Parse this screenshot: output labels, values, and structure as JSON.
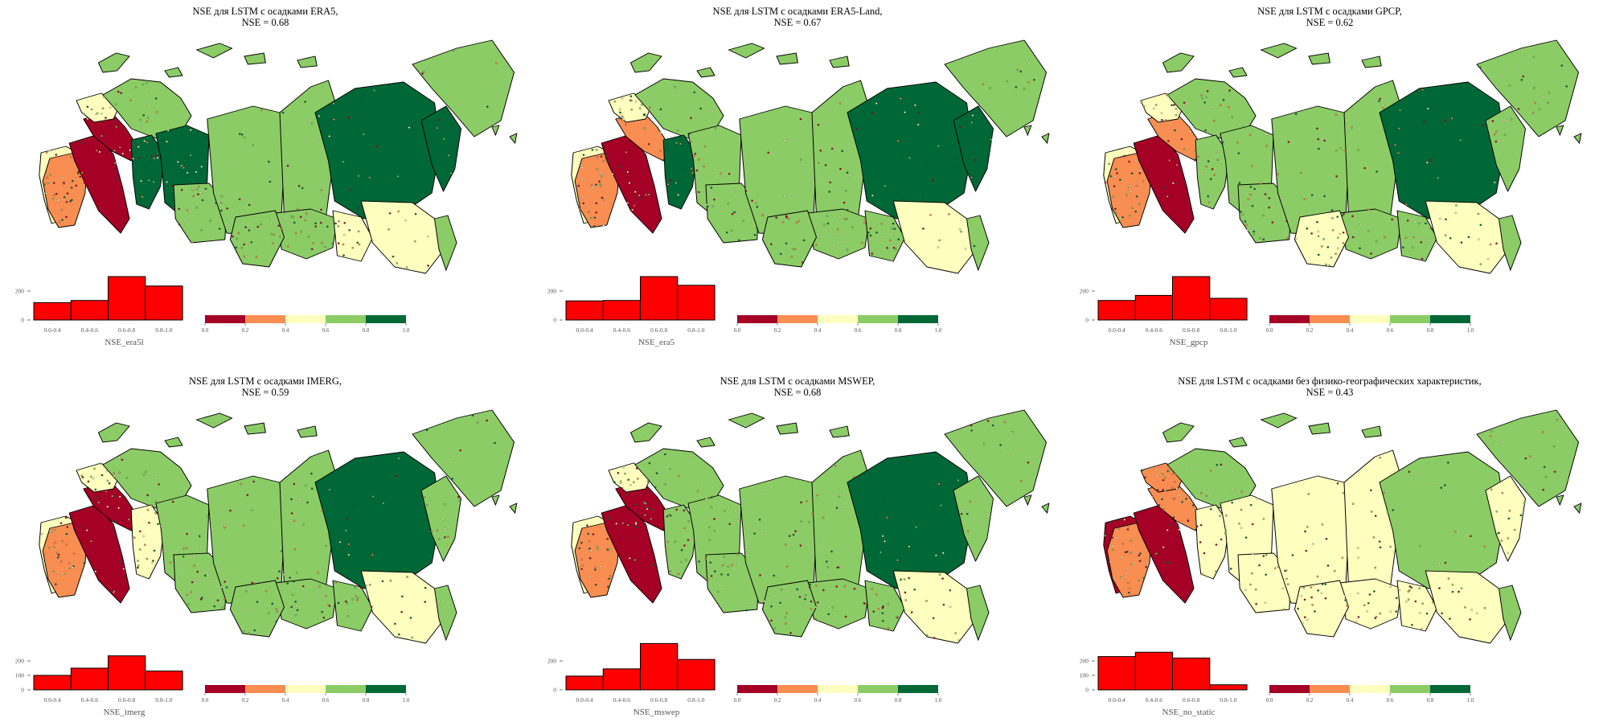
{
  "colors": {
    "c0": "#a50026",
    "c1": "#f98e52",
    "c2": "#feffbe",
    "c3": "#8ccc66",
    "c4": "#006837",
    "hist": "#ff0000",
    "border": "#000000",
    "tick_text": "#555555"
  },
  "colorbar": {
    "ticks": [
      "0.0",
      "0.2",
      "0.4",
      "0.6",
      "0.8",
      "1.0"
    ]
  },
  "hist_bins": [
    "0.0-0.4",
    "0.4-0.6",
    "0.6-0.8",
    "0.8-1.0"
  ],
  "panels": [
    {
      "title1": "NSE для LSTM с осадками ERA5,",
      "title2": "NSE = 0.68",
      "hist_xlabel": "NSE_era5l",
      "hist_ticks": [
        "0",
        "200"
      ],
      "hist_counts": [
        120,
        135,
        300,
        235
      ],
      "regions": [
        2,
        1,
        0,
        0,
        2,
        3,
        4,
        4,
        3,
        3,
        3,
        4,
        3,
        3,
        2,
        2,
        4,
        3
      ]
    },
    {
      "title1": "NSE для LSTM с осадками ERA5-Land,",
      "title2": "NSE = 0.67",
      "hist_xlabel": "NSE_era5",
      "hist_ticks": [
        "0",
        "200"
      ],
      "hist_counts": [
        132,
        135,
        300,
        240
      ],
      "regions": [
        2,
        1,
        0,
        1,
        2,
        3,
        4,
        3,
        3,
        3,
        3,
        4,
        3,
        3,
        3,
        2,
        4,
        3
      ]
    },
    {
      "title1": "NSE для LSTM с осадками  GPCP,",
      "title2": "NSE = 0.62",
      "hist_xlabel": "NSE_gpcp",
      "hist_ticks": [
        "0",
        "200"
      ],
      "hist_counts": [
        135,
        170,
        300,
        150
      ],
      "regions": [
        2,
        1,
        0,
        1,
        2,
        3,
        3,
        3,
        3,
        3,
        3,
        4,
        3,
        2,
        3,
        2,
        3,
        3
      ]
    },
    {
      "title1": "NSE для LSTM с осадками IMERG,",
      "title2": "NSE = 0.59",
      "hist_xlabel": "NSE_imerg",
      "hist_ticks": [
        "0",
        "100",
        "200"
      ],
      "hist_counts": [
        100,
        150,
        235,
        130
      ],
      "regions": [
        2,
        1,
        0,
        0,
        2,
        3,
        2,
        3,
        3,
        3,
        3,
        4,
        3,
        3,
        3,
        2,
        3,
        3
      ]
    },
    {
      "title1": "NSE для LSTM с осадками  MSWEP,",
      "title2": "NSE = 0.68",
      "hist_xlabel": "NSE_mswep",
      "hist_ticks": [
        "0",
        "200"
      ],
      "hist_counts": [
        95,
        145,
        320,
        210
      ],
      "regions": [
        2,
        1,
        0,
        0,
        2,
        3,
        3,
        3,
        3,
        3,
        3,
        4,
        3,
        3,
        3,
        2,
        3,
        3
      ]
    },
    {
      "title1": "NSE для LSTM с осадками без физико-географических характеристик,",
      "title2": "NSE = 0.43",
      "hist_xlabel": "NSE_no_static",
      "hist_ticks": [
        "0",
        "100",
        "200"
      ],
      "hist_counts": [
        230,
        260,
        220,
        35
      ],
      "regions": [
        0,
        1,
        0,
        1,
        1,
        3,
        2,
        2,
        2,
        2,
        2,
        3,
        2,
        2,
        2,
        2,
        2,
        3
      ]
    }
  ]
}
